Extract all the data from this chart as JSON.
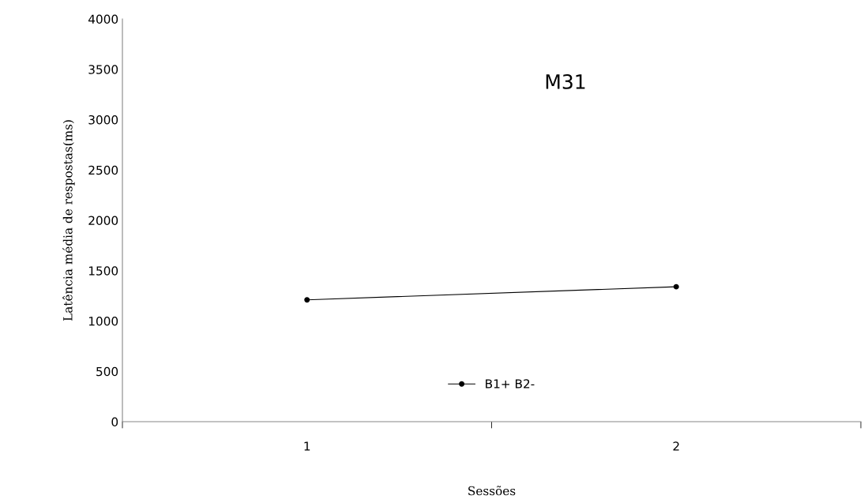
{
  "chart_data": {
    "type": "line",
    "title": "M31",
    "xlabel": "Sessões",
    "ylabel": "Latência média de respostas(ms)",
    "x": [
      1,
      2
    ],
    "xlim": [
      0.5,
      2.5
    ],
    "xticks": [
      {
        "value": 0.5,
        "label": null
      },
      1,
      {
        "value": 1.5,
        "label": null
      },
      2,
      {
        "value": 2.5,
        "label": null
      }
    ],
    "series": [
      {
        "name": "B1+ B2-",
        "color": "#000000",
        "values": [
          1210,
          1340
        ]
      }
    ],
    "ylim": [
      0,
      4000
    ],
    "yticks": [
      0,
      500,
      1000,
      1500,
      2000,
      2500,
      3000,
      3500,
      4000
    ],
    "grid": false,
    "legend": "bottom",
    "marker": "circle",
    "line_style": "solid"
  }
}
